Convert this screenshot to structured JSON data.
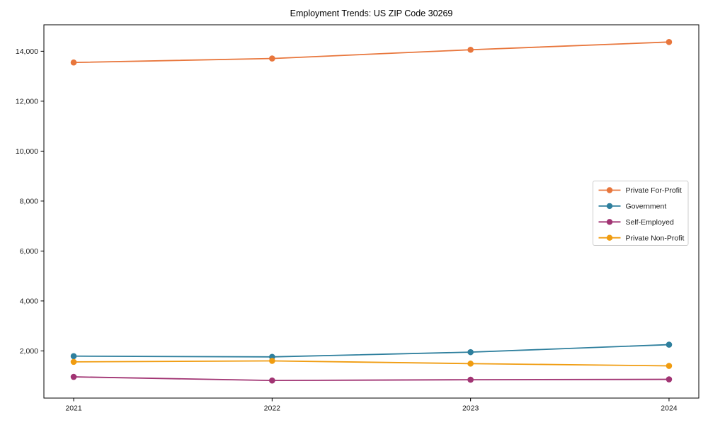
{
  "page": {
    "background": "#ffffff"
  },
  "chart_data": {
    "type": "line",
    "title": "Employment Trends: US ZIP Code 30269",
    "x": [
      2021,
      2022,
      2023,
      2024
    ],
    "x_tick_labels": [
      "2021",
      "2022",
      "2023",
      "2024"
    ],
    "y_ticks": [
      2000,
      4000,
      6000,
      8000,
      10000,
      12000,
      14000
    ],
    "y_tick_labels": [
      "2,000",
      "4,000",
      "6,000",
      "8,000",
      "10,000",
      "12,000",
      "14,000"
    ],
    "xlim": [
      2020.85,
      2024.15
    ],
    "ylim": [
      110,
      15060
    ],
    "grid": false,
    "legend_position": "center right",
    "series": [
      {
        "name": "Private For-Profit",
        "color": "#e8763c",
        "values": [
          13550,
          13710,
          14060,
          14370
        ]
      },
      {
        "name": "Government",
        "color": "#2e7f9d",
        "values": [
          1790,
          1760,
          1950,
          2250
        ]
      },
      {
        "name": "Self-Employed",
        "color": "#a13473",
        "values": [
          960,
          815,
          845,
          860
        ]
      },
      {
        "name": "Private Non-Profit",
        "color": "#f09c10",
        "values": [
          1560,
          1600,
          1490,
          1400
        ]
      }
    ],
    "axis_color": "#000000",
    "tick_label_color": "#1a1a1a",
    "legend_border_color": "#cccccc",
    "marker": "circle",
    "xlabel": "",
    "ylabel": ""
  }
}
